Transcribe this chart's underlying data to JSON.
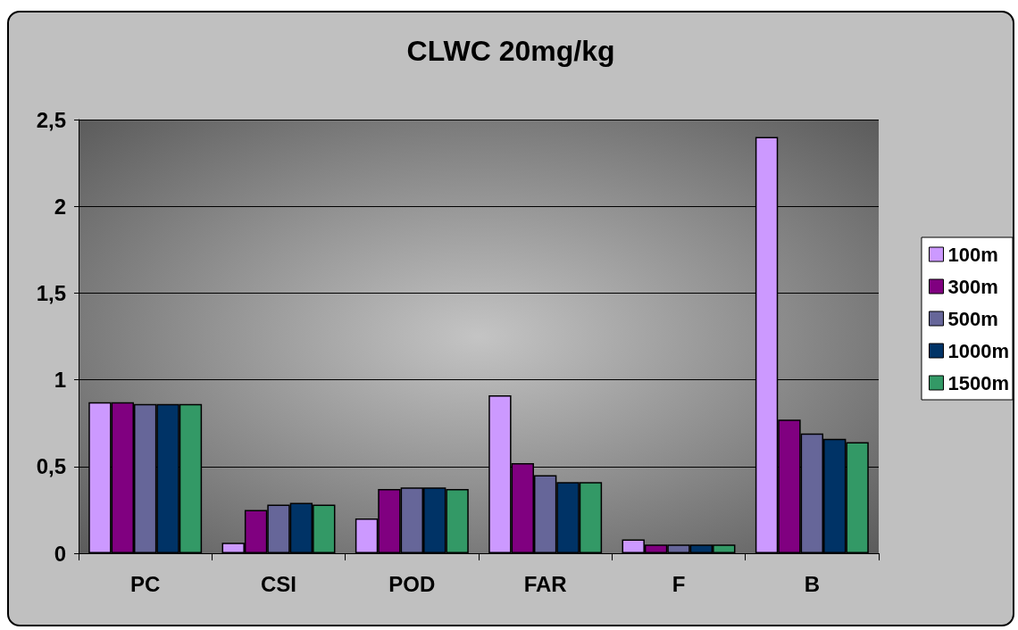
{
  "chart_data": {
    "type": "bar",
    "title": "CLWC 20mg/kg",
    "categories": [
      "PC",
      "CSI",
      "POD",
      "FAR",
      "F",
      "B"
    ],
    "series": [
      {
        "name": "100m",
        "color": "#cc99ff",
        "values": [
          0.87,
          0.06,
          0.2,
          0.91,
          0.08,
          2.4
        ]
      },
      {
        "name": "300m",
        "color": "#800080",
        "values": [
          0.87,
          0.25,
          0.37,
          0.52,
          0.05,
          0.77
        ]
      },
      {
        "name": "500m",
        "color": "#666699",
        "values": [
          0.86,
          0.28,
          0.38,
          0.45,
          0.05,
          0.69
        ]
      },
      {
        "name": "1000m",
        "color": "#003366",
        "values": [
          0.86,
          0.29,
          0.38,
          0.41,
          0.05,
          0.66
        ]
      },
      {
        "name": "1500m",
        "color": "#339966",
        "values": [
          0.86,
          0.28,
          0.37,
          0.41,
          0.05,
          0.64
        ]
      }
    ],
    "ylim": [
      0,
      2.5
    ],
    "yticks": [
      0,
      {
        "value": 0.5,
        "label": "0,5"
      },
      1,
      {
        "value": 1.5,
        "label": "1,5"
      },
      2,
      {
        "value": 2.5,
        "label": "2,5"
      }
    ],
    "grid": "y",
    "legend": "right"
  }
}
